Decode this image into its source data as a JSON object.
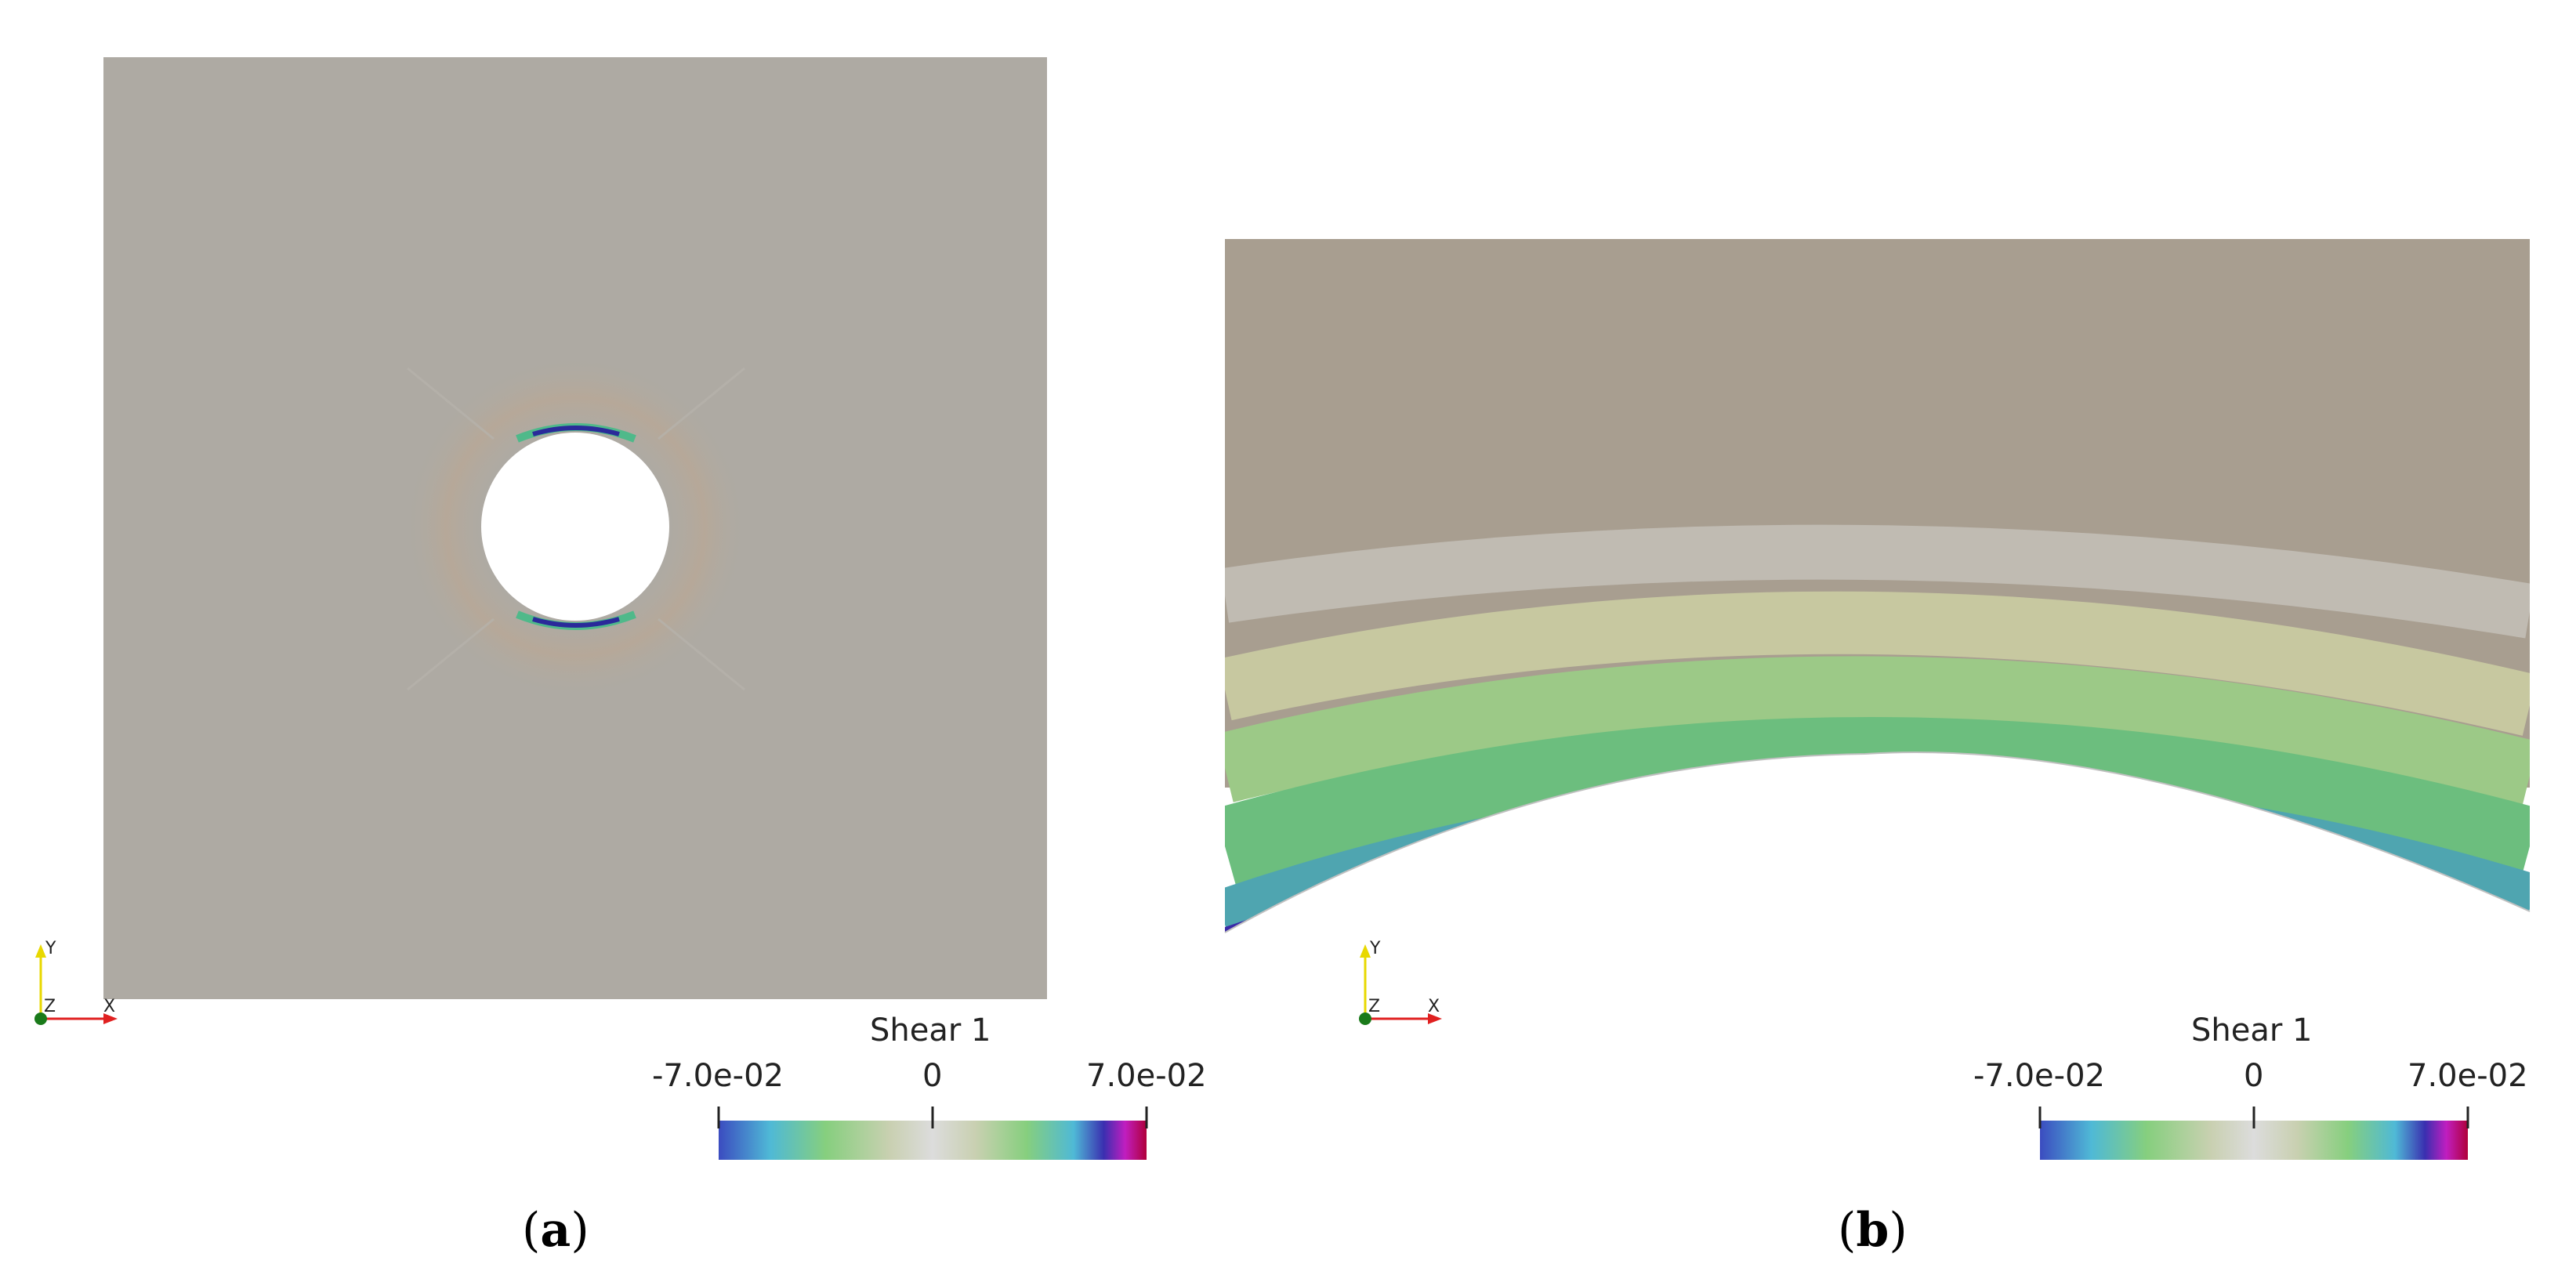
{
  "panels": [
    {
      "id": "a",
      "caption_open": "(",
      "caption_letter": "a",
      "caption_close": ")",
      "colorbar": {
        "title": "Shear 1",
        "min_label": "-7.0e-02",
        "mid_label": "0",
        "max_label": "7.0e-02"
      },
      "axes": {
        "y": "Y",
        "z": "Z",
        "x": "X"
      }
    },
    {
      "id": "b",
      "caption_open": "(",
      "caption_letter": "b",
      "caption_close": ")",
      "colorbar": {
        "title": "Shear 1",
        "min_label": "-7.0e-02",
        "mid_label": "0",
        "max_label": "7.0e-02"
      },
      "axes": {
        "y": "Y",
        "z": "Z",
        "x": "X"
      }
    }
  ],
  "colors": {
    "plate": "#aeaaa3",
    "plate_top_b": "#a89f92",
    "axis_y": "#e8d800",
    "axis_x": "#e02020",
    "axis_origin": "#1a7a1a"
  }
}
